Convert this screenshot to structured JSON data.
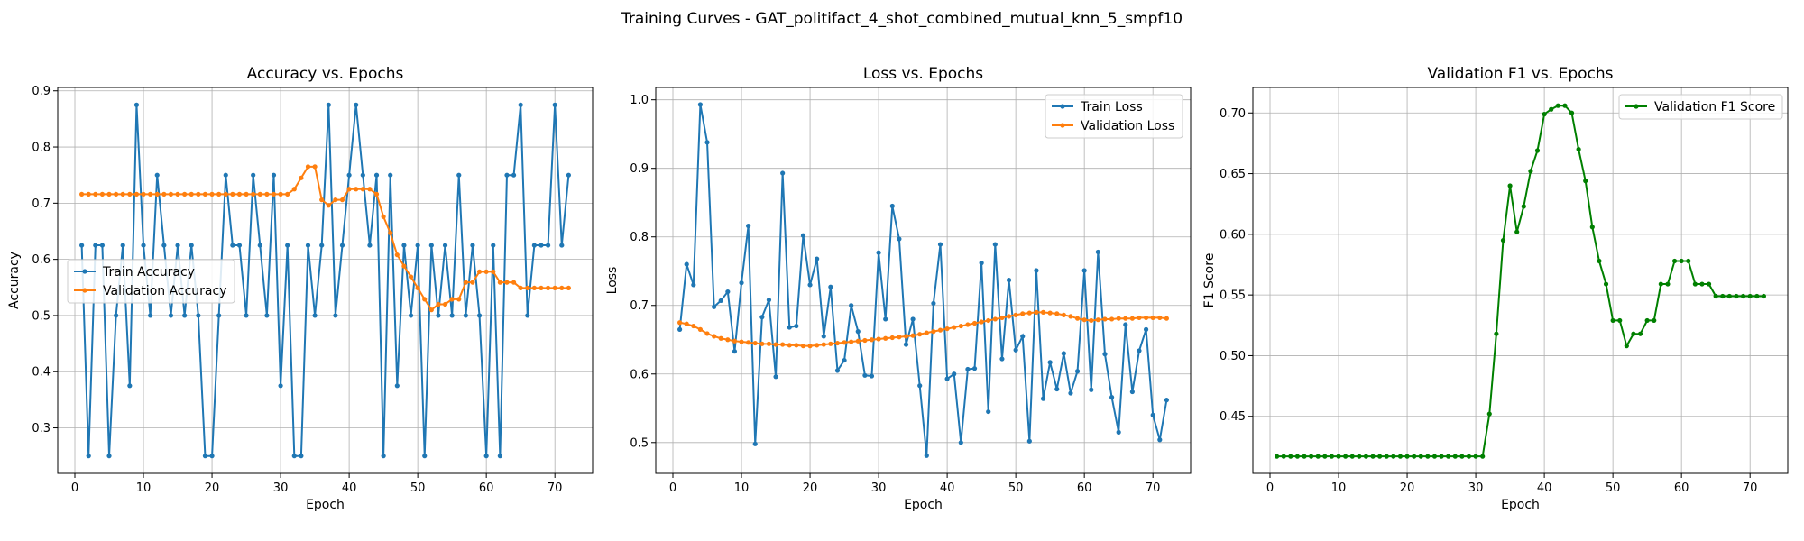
{
  "figure": {
    "suptitle": "Training Curves - GAT_politifact_4_shot_combined_mutual_knn_5_smpf10"
  },
  "chart_data": [
    {
      "type": "line",
      "title": "Accuracy vs. Epochs",
      "xlabel": "Epoch",
      "ylabel": "Accuracy",
      "xlim": [
        -2.5,
        75.5
      ],
      "ylim": [
        0.219,
        0.906
      ],
      "xticks": [
        0,
        10,
        20,
        30,
        40,
        50,
        60,
        70
      ],
      "yticks": [
        0.3,
        0.4,
        0.5,
        0.6,
        0.7,
        0.8,
        0.9
      ],
      "ytick_labels": [
        "0.3",
        "0.4",
        "0.5",
        "0.6",
        "0.7",
        "0.8",
        "0.9"
      ],
      "grid": true,
      "legend": "center-left",
      "x": [
        1,
        2,
        3,
        4,
        5,
        6,
        7,
        8,
        9,
        10,
        11,
        12,
        13,
        14,
        15,
        16,
        17,
        18,
        19,
        20,
        21,
        22,
        23,
        24,
        25,
        26,
        27,
        28,
        29,
        30,
        31,
        32,
        33,
        34,
        35,
        36,
        37,
        38,
        39,
        40,
        41,
        42,
        43,
        44,
        45,
        46,
        47,
        48,
        49,
        50,
        51,
        52,
        53,
        54,
        55,
        56,
        57,
        58,
        59,
        60,
        61,
        62,
        63,
        64,
        65,
        66,
        67,
        68,
        69,
        70,
        71,
        72
      ],
      "series": [
        {
          "name": "Train Accuracy",
          "color": "#1f77b4",
          "values": [
            0.625,
            0.25,
            0.625,
            0.625,
            0.25,
            0.5,
            0.625,
            0.375,
            0.875,
            0.625,
            0.5,
            0.75,
            0.625,
            0.5,
            0.625,
            0.5,
            0.625,
            0.5,
            0.25,
            0.25,
            0.5,
            0.75,
            0.625,
            0.625,
            0.5,
            0.75,
            0.625,
            0.5,
            0.75,
            0.375,
            0.625,
            0.25,
            0.25,
            0.625,
            0.5,
            0.625,
            0.875,
            0.5,
            0.625,
            0.75,
            0.875,
            0.75,
            0.625,
            0.75,
            0.25,
            0.75,
            0.375,
            0.625,
            0.5,
            0.625,
            0.25,
            0.625,
            0.5,
            0.625,
            0.5,
            0.75,
            0.5,
            0.625,
            0.5,
            0.25,
            0.625,
            0.25,
            0.75,
            0.75,
            0.875,
            0.5,
            0.625,
            0.625,
            0.625,
            0.875,
            0.625,
            0.75
          ]
        },
        {
          "name": "Validation Accuracy",
          "color": "#ff7f0e",
          "values": [
            0.716,
            0.716,
            0.716,
            0.716,
            0.716,
            0.716,
            0.716,
            0.716,
            0.716,
            0.716,
            0.716,
            0.716,
            0.716,
            0.716,
            0.716,
            0.716,
            0.716,
            0.716,
            0.716,
            0.716,
            0.716,
            0.716,
            0.716,
            0.716,
            0.716,
            0.716,
            0.716,
            0.716,
            0.716,
            0.716,
            0.716,
            0.725,
            0.745,
            0.765,
            0.765,
            0.706,
            0.696,
            0.706,
            0.706,
            0.725,
            0.725,
            0.725,
            0.725,
            0.716,
            0.676,
            0.647,
            0.608,
            0.588,
            0.569,
            0.549,
            0.529,
            0.51,
            0.52,
            0.52,
            0.529,
            0.529,
            0.559,
            0.559,
            0.578,
            0.578,
            0.578,
            0.559,
            0.559,
            0.559,
            0.549,
            0.549,
            0.549,
            0.549,
            0.549,
            0.549,
            0.549,
            0.549
          ]
        }
      ]
    },
    {
      "type": "line",
      "title": "Loss vs. Epochs",
      "xlabel": "Epoch",
      "ylabel": "Loss",
      "xlim": [
        -2.5,
        75.5
      ],
      "ylim": [
        0.455,
        1.018
      ],
      "xticks": [
        0,
        10,
        20,
        30,
        40,
        50,
        60,
        70
      ],
      "yticks": [
        0.5,
        0.6,
        0.7,
        0.8,
        0.9,
        1.0
      ],
      "ytick_labels": [
        "0.5",
        "0.6",
        "0.7",
        "0.8",
        "0.9",
        "1.0"
      ],
      "grid": true,
      "legend": "top-right",
      "x": [
        1,
        2,
        3,
        4,
        5,
        6,
        7,
        8,
        9,
        10,
        11,
        12,
        13,
        14,
        15,
        16,
        17,
        18,
        19,
        20,
        21,
        22,
        23,
        24,
        25,
        26,
        27,
        28,
        29,
        30,
        31,
        32,
        33,
        34,
        35,
        36,
        37,
        38,
        39,
        40,
        41,
        42,
        43,
        44,
        45,
        46,
        47,
        48,
        49,
        50,
        51,
        52,
        53,
        54,
        55,
        56,
        57,
        58,
        59,
        60,
        61,
        62,
        63,
        64,
        65,
        66,
        67,
        68,
        69,
        70,
        71,
        72
      ],
      "series": [
        {
          "name": "Train Loss",
          "color": "#1f77b4",
          "values": [
            0.665,
            0.76,
            0.73,
            0.993,
            0.938,
            0.698,
            0.707,
            0.72,
            0.633,
            0.733,
            0.816,
            0.498,
            0.683,
            0.708,
            0.596,
            0.893,
            0.668,
            0.67,
            0.802,
            0.73,
            0.768,
            0.655,
            0.727,
            0.605,
            0.62,
            0.7,
            0.662,
            0.598,
            0.597,
            0.777,
            0.68,
            0.845,
            0.797,
            0.643,
            0.68,
            0.583,
            0.481,
            0.703,
            0.789,
            0.593,
            0.6,
            0.5,
            0.607,
            0.608,
            0.762,
            0.545,
            0.789,
            0.622,
            0.737,
            0.635,
            0.655,
            0.502,
            0.751,
            0.564,
            0.617,
            0.578,
            0.63,
            0.572,
            0.604,
            0.751,
            0.577,
            0.778,
            0.629,
            0.566,
            0.515,
            0.672,
            0.574,
            0.634,
            0.665,
            0.54,
            0.504,
            0.562
          ]
        },
        {
          "name": "Validation Loss",
          "color": "#ff7f0e",
          "values": [
            0.675,
            0.673,
            0.67,
            0.665,
            0.659,
            0.655,
            0.652,
            0.65,
            0.648,
            0.647,
            0.646,
            0.645,
            0.644,
            0.644,
            0.643,
            0.643,
            0.642,
            0.642,
            0.641,
            0.641,
            0.642,
            0.643,
            0.644,
            0.645,
            0.646,
            0.647,
            0.648,
            0.649,
            0.65,
            0.651,
            0.652,
            0.653,
            0.654,
            0.655,
            0.656,
            0.658,
            0.66,
            0.662,
            0.664,
            0.666,
            0.668,
            0.67,
            0.672,
            0.674,
            0.676,
            0.678,
            0.68,
            0.682,
            0.684,
            0.686,
            0.688,
            0.689,
            0.69,
            0.69,
            0.689,
            0.688,
            0.686,
            0.684,
            0.681,
            0.679,
            0.678,
            0.679,
            0.68,
            0.68,
            0.681,
            0.681,
            0.681,
            0.682,
            0.682,
            0.682,
            0.682,
            0.681
          ]
        }
      ]
    },
    {
      "type": "line",
      "title": "Validation F1 vs. Epochs",
      "xlabel": "Epoch",
      "ylabel": "F1 Score",
      "xlim": [
        -2.5,
        75.5
      ],
      "ylim": [
        0.403,
        0.721
      ],
      "xticks": [
        0,
        10,
        20,
        30,
        40,
        50,
        60,
        70
      ],
      "yticks": [
        0.45,
        0.5,
        0.55,
        0.6,
        0.65,
        0.7
      ],
      "ytick_labels": [
        "0.45",
        "0.50",
        "0.55",
        "0.60",
        "0.65",
        "0.70"
      ],
      "grid": true,
      "legend": "top-right",
      "x": [
        1,
        2,
        3,
        4,
        5,
        6,
        7,
        8,
        9,
        10,
        11,
        12,
        13,
        14,
        15,
        16,
        17,
        18,
        19,
        20,
        21,
        22,
        23,
        24,
        25,
        26,
        27,
        28,
        29,
        30,
        31,
        32,
        33,
        34,
        35,
        36,
        37,
        38,
        39,
        40,
        41,
        42,
        43,
        44,
        45,
        46,
        47,
        48,
        49,
        50,
        51,
        52,
        53,
        54,
        55,
        56,
        57,
        58,
        59,
        60,
        61,
        62,
        63,
        64,
        65,
        66,
        67,
        68,
        69,
        70,
        71,
        72
      ],
      "series": [
        {
          "name": "Validation F1 Score",
          "color": "#008000",
          "values": [
            0.417,
            0.417,
            0.417,
            0.417,
            0.417,
            0.417,
            0.417,
            0.417,
            0.417,
            0.417,
            0.417,
            0.417,
            0.417,
            0.417,
            0.417,
            0.417,
            0.417,
            0.417,
            0.417,
            0.417,
            0.417,
            0.417,
            0.417,
            0.417,
            0.417,
            0.417,
            0.417,
            0.417,
            0.417,
            0.417,
            0.417,
            0.452,
            0.518,
            0.595,
            0.64,
            0.602,
            0.623,
            0.652,
            0.669,
            0.699,
            0.703,
            0.706,
            0.706,
            0.7,
            0.67,
            0.644,
            0.606,
            0.578,
            0.559,
            0.529,
            0.529,
            0.508,
            0.518,
            0.518,
            0.529,
            0.529,
            0.559,
            0.559,
            0.578,
            0.578,
            0.578,
            0.559,
            0.559,
            0.559,
            0.549,
            0.549,
            0.549,
            0.549,
            0.549,
            0.549,
            0.549,
            0.549
          ]
        }
      ]
    }
  ]
}
